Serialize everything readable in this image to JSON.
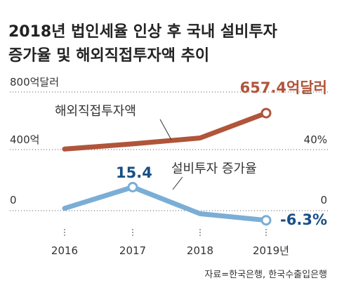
{
  "chart_data": {
    "title_lines": [
      "2018년 법인세율 인상 후 국내 설비투자",
      "증가율 및 해외직접투자액 추이"
    ],
    "categories": [
      "2016",
      "2017",
      "2018",
      "2019년"
    ],
    "left_axis": {
      "ticks": [
        "800억달러",
        "400억"
      ],
      "range": [
        0,
        800
      ],
      "unit": "억달러"
    },
    "right_axis": {
      "ticks": [
        "40%",
        "0"
      ]
    },
    "left_zero_tick": "0",
    "series": [
      {
        "name": "해외직접투자액",
        "type": "line",
        "axis": "left",
        "color": "#b0553a",
        "values": [
          415,
          450,
          490,
          657.4
        ],
        "end_label": "657.4억달러"
      },
      {
        "name": "설비투자 증가율",
        "type": "line",
        "axis": "right",
        "color": "#7aaed6",
        "values": [
          1.5,
          15.4,
          -2.0,
          -6.3
        ],
        "peak_label": "15.4",
        "end_label": "-6.3%"
      }
    ],
    "source": "자료=한국은행, 한국수출입은행"
  }
}
